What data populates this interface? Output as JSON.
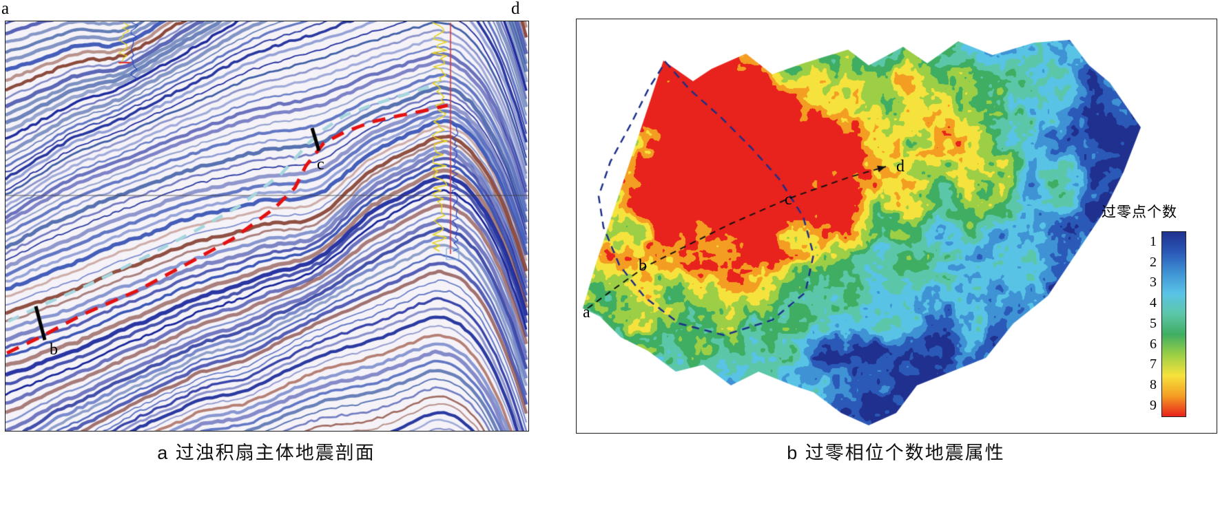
{
  "figure": {
    "panel_a": {
      "endpoint_left": "a",
      "endpoint_right": "d",
      "marker_b": "b",
      "marker_c": "c",
      "caption": "a 过浊积扇主体地震剖面"
    },
    "panel_b": {
      "caption": "b 过零相位个数地震属性",
      "traverse_labels": {
        "start": "a",
        "mid1": "b",
        "mid2": "c",
        "end": "d"
      },
      "colorbar": {
        "title": "过零点个数",
        "ticks": [
          "1",
          "2",
          "3",
          "4",
          "5",
          "6",
          "7",
          "8",
          "9"
        ],
        "colors_top_to_bottom": [
          "#20308e",
          "#2b59b8",
          "#3f93d4",
          "#59c3e6",
          "#5cc6a8",
          "#3fae63",
          "#9ccf45",
          "#f6e23c",
          "#f49d23",
          "#e8221c"
        ]
      }
    }
  },
  "chart_data": {
    "type": "heatmap",
    "panels": [
      {
        "id": "a",
        "kind": "seismic-section",
        "caption": "a 过浊积扇主体地震剖面",
        "section_endpoints": [
          "a",
          "d"
        ],
        "horizon_markers": [
          "b",
          "c"
        ]
      },
      {
        "id": "b",
        "kind": "attribute-map",
        "caption": "b 过零相位个数地震属性",
        "legend_title": "过零点个数",
        "legend_ticks": [
          1,
          2,
          3,
          4,
          5,
          6,
          7,
          8,
          9
        ],
        "legend_colors_low_to_high": [
          "#20308e",
          "#2b59b8",
          "#3f93d4",
          "#59c3e6",
          "#5cc6a8",
          "#3fae63",
          "#9ccf45",
          "#f6e23c",
          "#f49d23",
          "#e8221c"
        ],
        "traverse_points": [
          "a",
          "b",
          "c",
          "d"
        ]
      }
    ]
  }
}
